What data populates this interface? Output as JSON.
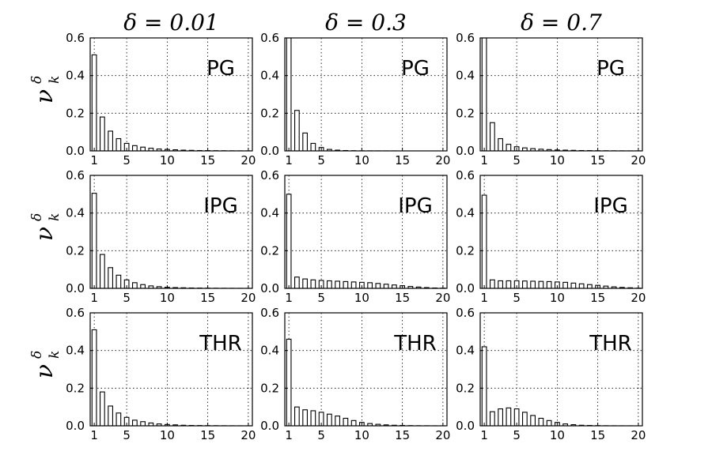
{
  "figure": {
    "col_titles": [
      "δ = 0.01",
      "δ = 0.3",
      "δ = 0.7"
    ],
    "ylabel": "ν",
    "ylabel_sub": "k",
    "ylabel_sup": "δ"
  },
  "chart_data": [
    {
      "type": "bar",
      "row": 0,
      "col": 0,
      "label": "PG",
      "x": [
        1,
        2,
        3,
        4,
        5,
        6,
        7,
        8,
        9,
        10,
        11,
        12,
        13,
        14,
        15,
        16,
        17,
        18,
        19,
        20
      ],
      "values": [
        0.51,
        0.18,
        0.105,
        0.065,
        0.04,
        0.028,
        0.02,
        0.014,
        0.01,
        0.008,
        0.006,
        0.004,
        0.003,
        0.002,
        0.0015,
        0.001,
        0.0008,
        0.0005,
        0.0003,
        0.0002
      ],
      "xlim": [
        0.5,
        20.5
      ],
      "ylim": [
        0,
        0.6
      ],
      "xticks": [
        1,
        5,
        10,
        15,
        20
      ],
      "yticks": [
        0.0,
        0.2,
        0.4,
        0.6
      ],
      "grid": true
    },
    {
      "type": "bar",
      "row": 0,
      "col": 1,
      "label": "PG",
      "x": [
        1,
        2,
        3,
        4,
        5,
        6,
        7,
        8,
        9,
        10,
        11,
        12,
        13,
        14,
        15,
        16,
        17,
        18,
        19,
        20
      ],
      "values": [
        0.6,
        0.215,
        0.095,
        0.04,
        0.018,
        0.008,
        0.004,
        0.002,
        0.001,
        0.0005,
        0.0003,
        0.0002,
        0.0001,
        0.0001,
        0,
        0,
        0,
        0,
        0,
        0
      ],
      "xlim": [
        0.5,
        20.5
      ],
      "ylim": [
        0,
        0.6
      ],
      "xticks": [
        1,
        5,
        10,
        15,
        20
      ],
      "yticks": [
        0.0,
        0.2,
        0.4,
        0.6
      ],
      "grid": true
    },
    {
      "type": "bar",
      "row": 0,
      "col": 2,
      "label": "PG",
      "x": [
        1,
        2,
        3,
        4,
        5,
        6,
        7,
        8,
        9,
        10,
        11,
        12,
        13,
        14,
        15,
        16,
        17,
        18,
        19,
        20
      ],
      "values": [
        0.6,
        0.15,
        0.065,
        0.035,
        0.022,
        0.016,
        0.012,
        0.009,
        0.007,
        0.005,
        0.004,
        0.003,
        0.002,
        0.0015,
        0.001,
        0.0008,
        0.0005,
        0.0003,
        0.0002,
        0.0001
      ],
      "xlim": [
        0.5,
        20.5
      ],
      "ylim": [
        0,
        0.6
      ],
      "xticks": [
        1,
        5,
        10,
        15,
        20
      ],
      "yticks": [
        0.0,
        0.2,
        0.4,
        0.6
      ],
      "grid": true
    },
    {
      "type": "bar",
      "row": 1,
      "col": 0,
      "label": "IPG",
      "x": [
        1,
        2,
        3,
        4,
        5,
        6,
        7,
        8,
        9,
        10,
        11,
        12,
        13,
        14,
        15,
        16,
        17,
        18,
        19,
        20
      ],
      "values": [
        0.505,
        0.18,
        0.11,
        0.07,
        0.045,
        0.03,
        0.02,
        0.013,
        0.009,
        0.006,
        0.004,
        0.003,
        0.002,
        0.0015,
        0.001,
        0.0007,
        0.0005,
        0.0003,
        0.0002,
        0.0001
      ],
      "xlim": [
        0.5,
        20.5
      ],
      "ylim": [
        0,
        0.6
      ],
      "xticks": [
        1,
        5,
        10,
        15,
        20
      ],
      "yticks": [
        0.0,
        0.2,
        0.4,
        0.6
      ],
      "grid": true
    },
    {
      "type": "bar",
      "row": 1,
      "col": 1,
      "label": "IPG",
      "x": [
        1,
        2,
        3,
        4,
        5,
        6,
        7,
        8,
        9,
        10,
        11,
        12,
        13,
        14,
        15,
        16,
        17,
        18,
        19,
        20
      ],
      "values": [
        0.5,
        0.06,
        0.05,
        0.045,
        0.042,
        0.04,
        0.038,
        0.036,
        0.034,
        0.032,
        0.03,
        0.026,
        0.022,
        0.018,
        0.014,
        0.01,
        0.007,
        0.004,
        0.002,
        0.001
      ],
      "xlim": [
        0.5,
        20.5
      ],
      "ylim": [
        0,
        0.6
      ],
      "xticks": [
        1,
        5,
        10,
        15,
        20
      ],
      "yticks": [
        0.0,
        0.2,
        0.4,
        0.6
      ],
      "grid": true
    },
    {
      "type": "bar",
      "row": 1,
      "col": 2,
      "label": "IPG",
      "x": [
        1,
        2,
        3,
        4,
        5,
        6,
        7,
        8,
        9,
        10,
        11,
        12,
        13,
        14,
        15,
        16,
        17,
        18,
        19,
        20
      ],
      "values": [
        0.495,
        0.045,
        0.04,
        0.04,
        0.04,
        0.039,
        0.038,
        0.037,
        0.036,
        0.034,
        0.032,
        0.028,
        0.024,
        0.02,
        0.016,
        0.012,
        0.008,
        0.005,
        0.003,
        0.001
      ],
      "xlim": [
        0.5,
        20.5
      ],
      "ylim": [
        0,
        0.6
      ],
      "xticks": [
        1,
        5,
        10,
        15,
        20
      ],
      "yticks": [
        0.0,
        0.2,
        0.4,
        0.6
      ],
      "grid": true
    },
    {
      "type": "bar",
      "row": 2,
      "col": 0,
      "label": "THR",
      "x": [
        1,
        2,
        3,
        4,
        5,
        6,
        7,
        8,
        9,
        10,
        11,
        12,
        13,
        14,
        15,
        16,
        17,
        18,
        19,
        20
      ],
      "values": [
        0.51,
        0.18,
        0.105,
        0.068,
        0.045,
        0.03,
        0.022,
        0.015,
        0.01,
        0.007,
        0.005,
        0.003,
        0.002,
        0.0015,
        0.001,
        0.0007,
        0.0005,
        0.0003,
        0.0002,
        0.0001
      ],
      "xlim": [
        0.5,
        20.5
      ],
      "ylim": [
        0,
        0.6
      ],
      "xticks": [
        1,
        5,
        10,
        15,
        20
      ],
      "yticks": [
        0.0,
        0.2,
        0.4,
        0.6
      ],
      "grid": true
    },
    {
      "type": "bar",
      "row": 2,
      "col": 1,
      "label": "THR",
      "x": [
        1,
        2,
        3,
        4,
        5,
        6,
        7,
        8,
        9,
        10,
        11,
        12,
        13,
        14,
        15,
        16,
        17,
        18,
        19,
        20
      ],
      "values": [
        0.46,
        0.1,
        0.085,
        0.08,
        0.072,
        0.062,
        0.052,
        0.04,
        0.028,
        0.018,
        0.012,
        0.008,
        0.005,
        0.003,
        0.002,
        0.001,
        0.0005,
        0.0003,
        0.0002,
        0.0001
      ],
      "xlim": [
        0.5,
        20.5
      ],
      "ylim": [
        0,
        0.6
      ],
      "xticks": [
        1,
        5,
        10,
        15,
        20
      ],
      "yticks": [
        0.0,
        0.2,
        0.4,
        0.6
      ],
      "grid": true
    },
    {
      "type": "bar",
      "row": 2,
      "col": 2,
      "label": "THR",
      "x": [
        1,
        2,
        3,
        4,
        5,
        6,
        7,
        8,
        9,
        10,
        11,
        12,
        13,
        14,
        15,
        16,
        17,
        18,
        19,
        20
      ],
      "values": [
        0.42,
        0.075,
        0.09,
        0.095,
        0.09,
        0.072,
        0.055,
        0.04,
        0.028,
        0.018,
        0.01,
        0.006,
        0.003,
        0.002,
        0.001,
        0.0005,
        0.0003,
        0.0002,
        0.0001,
        0
      ],
      "xlim": [
        0.5,
        20.5
      ],
      "ylim": [
        0,
        0.6
      ],
      "xticks": [
        1,
        5,
        10,
        15,
        20
      ],
      "yticks": [
        0.0,
        0.2,
        0.4,
        0.6
      ],
      "grid": true
    }
  ]
}
